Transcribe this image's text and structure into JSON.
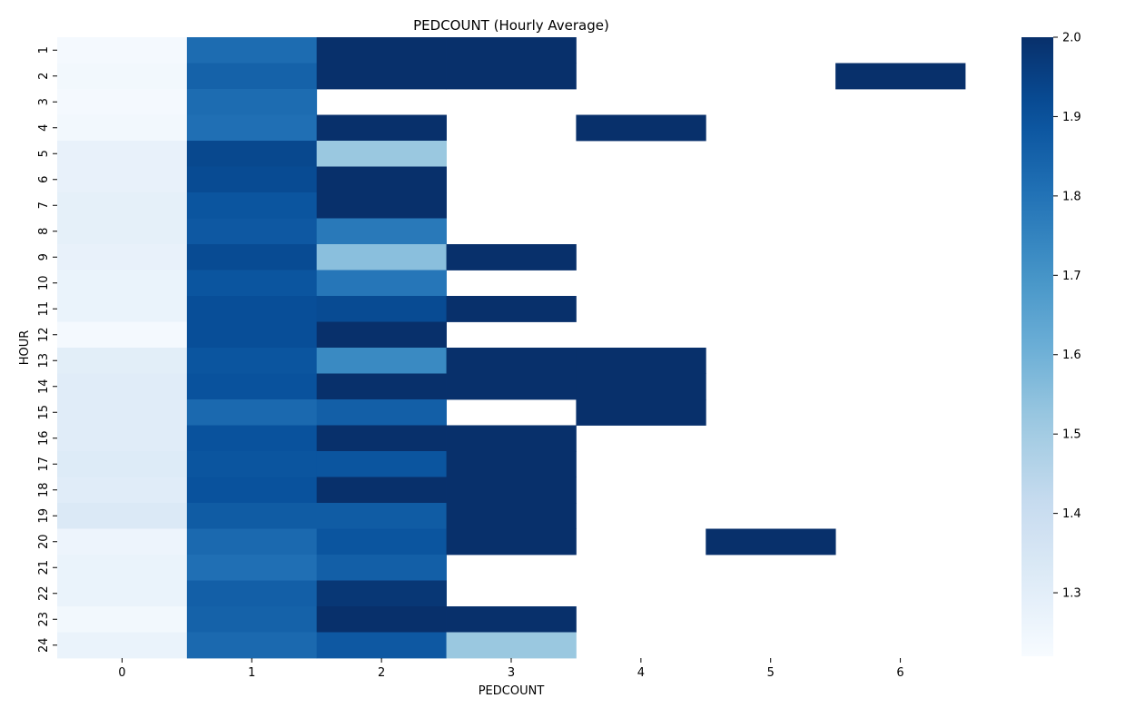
{
  "chart_data": {
    "type": "heatmap",
    "title": "PEDCOUNT (Hourly Average)",
    "xlabel": "PEDCOUNT",
    "ylabel": "HOUR",
    "x": [
      0,
      1,
      2,
      3,
      4,
      5,
      6
    ],
    "y": [
      1,
      2,
      3,
      4,
      5,
      6,
      7,
      8,
      9,
      10,
      11,
      12,
      13,
      14,
      15,
      16,
      17,
      18,
      19,
      20,
      21,
      22,
      23,
      24
    ],
    "values": [
      [
        1.23,
        1.82,
        2.0,
        2.0,
        null,
        null,
        null
      ],
      [
        1.24,
        1.85,
        2.0,
        2.0,
        null,
        null,
        2.0
      ],
      [
        1.23,
        1.82,
        null,
        null,
        null,
        null,
        null
      ],
      [
        1.24,
        1.81,
        2.0,
        null,
        2.0,
        null,
        null
      ],
      [
        1.28,
        1.93,
        1.52,
        null,
        null,
        null,
        null
      ],
      [
        1.28,
        1.92,
        2.0,
        null,
        null,
        null,
        null
      ],
      [
        1.29,
        1.89,
        2.0,
        null,
        null,
        null,
        null
      ],
      [
        1.29,
        1.88,
        1.78,
        null,
        null,
        null,
        null
      ],
      [
        1.28,
        1.92,
        1.55,
        2.0,
        null,
        null,
        null
      ],
      [
        1.27,
        1.89,
        1.79,
        null,
        null,
        null,
        null
      ],
      [
        1.27,
        1.91,
        1.92,
        2.0,
        null,
        null,
        null
      ],
      [
        1.23,
        1.91,
        2.0,
        null,
        null,
        null,
        null
      ],
      [
        1.3,
        1.89,
        1.73,
        2.0,
        2.0,
        null,
        null
      ],
      [
        1.31,
        1.9,
        2.0,
        2.0,
        2.0,
        null,
        null
      ],
      [
        1.31,
        1.83,
        1.86,
        null,
        2.0,
        null,
        null
      ],
      [
        1.31,
        1.9,
        2.0,
        2.0,
        null,
        null,
        null
      ],
      [
        1.32,
        1.89,
        1.89,
        2.0,
        null,
        null,
        null
      ],
      [
        1.31,
        1.9,
        2.0,
        2.0,
        null,
        null,
        null
      ],
      [
        1.33,
        1.87,
        1.87,
        2.0,
        null,
        null,
        null
      ],
      [
        1.26,
        1.83,
        1.89,
        2.0,
        null,
        2.0,
        null
      ],
      [
        1.27,
        1.81,
        1.86,
        null,
        null,
        null,
        null
      ],
      [
        1.27,
        1.86,
        1.98,
        null,
        null,
        null,
        null
      ],
      [
        1.24,
        1.85,
        2.0,
        2.0,
        null,
        null,
        null
      ],
      [
        1.27,
        1.83,
        1.88,
        1.52,
        null,
        null,
        null
      ]
    ],
    "colorbar": {
      "min": 1.22,
      "max": 2.0,
      "ticks": [
        "1.3",
        "1.4",
        "1.5",
        "1.6",
        "1.7",
        "1.8",
        "1.9",
        "2.0"
      ],
      "colormap": "Blues"
    },
    "grid": false
  }
}
